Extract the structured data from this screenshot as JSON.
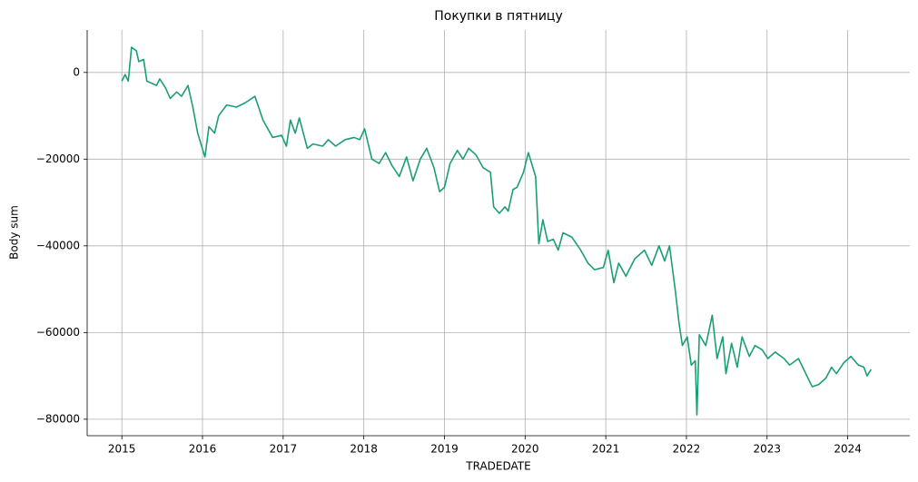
{
  "chart_data": {
    "type": "line",
    "title": "Покупки в пятницу",
    "x_label": "TRADEDATE",
    "y_label": "Body sum",
    "x": [
      2015.0,
      2015.04,
      2015.08,
      2015.12,
      2015.18,
      2015.21,
      2015.27,
      2015.31,
      2015.43,
      2015.47,
      2015.54,
      2015.6,
      2015.68,
      2015.74,
      2015.82,
      2015.88,
      2015.94,
      2016.03,
      2016.08,
      2016.15,
      2016.2,
      2016.3,
      2016.42,
      2016.53,
      2016.65,
      2016.75,
      2016.87,
      2016.98,
      2017.04,
      2017.09,
      2017.15,
      2017.2,
      2017.3,
      2017.37,
      2017.49,
      2017.56,
      2017.65,
      2017.77,
      2017.88,
      2017.95,
      2018.01,
      2018.1,
      2018.19,
      2018.27,
      2018.35,
      2018.44,
      2018.53,
      2018.61,
      2018.7,
      2018.78,
      2018.87,
      2018.94,
      2019.0,
      2019.07,
      2019.16,
      2019.23,
      2019.3,
      2019.39,
      2019.48,
      2019.57,
      2019.61,
      2019.68,
      2019.75,
      2019.79,
      2019.85,
      2019.9,
      2019.98,
      2020.04,
      2020.13,
      2020.17,
      2020.22,
      2020.28,
      2020.35,
      2020.41,
      2020.47,
      2020.58,
      2020.69,
      2020.78,
      2020.86,
      2020.97,
      2021.03,
      2021.1,
      2021.16,
      2021.25,
      2021.36,
      2021.48,
      2021.57,
      2021.66,
      2021.73,
      2021.79,
      2021.86,
      2021.91,
      2021.95,
      2022.01,
      2022.06,
      2022.11,
      2022.13,
      2022.16,
      2022.24,
      2022.32,
      2022.38,
      2022.45,
      2022.49,
      2022.56,
      2022.63,
      2022.69,
      2022.78,
      2022.85,
      2022.94,
      2023.01,
      2023.1,
      2023.21,
      2023.28,
      2023.39,
      2023.48,
      2023.56,
      2023.64,
      2023.73,
      2023.8,
      2023.86,
      2023.95,
      2024.04,
      2024.13,
      2024.2,
      2024.24,
      2024.29
    ],
    "series": [
      {
        "name": "Body sum",
        "color": "#1b9e77",
        "values": [
          -2000,
          -500,
          -2000,
          5800,
          5000,
          2500,
          3000,
          -2000,
          -3000,
          -1500,
          -3500,
          -6000,
          -4500,
          -5500,
          -3000,
          -8000,
          -14000,
          -19500,
          -12500,
          -14000,
          -10000,
          -7500,
          -8000,
          -7000,
          -5500,
          -11000,
          -15000,
          -14500,
          -17000,
          -11000,
          -14000,
          -10500,
          -17500,
          -16500,
          -17000,
          -15500,
          -17000,
          -15500,
          -15000,
          -15500,
          -13000,
          -20000,
          -21000,
          -18500,
          -21500,
          -24000,
          -19500,
          -25000,
          -20000,
          -17500,
          -22000,
          -27500,
          -26500,
          -21000,
          -18000,
          -20000,
          -17500,
          -19000,
          -22000,
          -23000,
          -31000,
          -32500,
          -31000,
          -32000,
          -27000,
          -26500,
          -23000,
          -18500,
          -24000,
          -39500,
          -34000,
          -39000,
          -38500,
          -41000,
          -37000,
          -38000,
          -41000,
          -44000,
          -45500,
          -45000,
          -41000,
          -48500,
          -44000,
          -47000,
          -43000,
          -41000,
          -44500,
          -40000,
          -43500,
          -40000,
          -50000,
          -58000,
          -63000,
          -61000,
          -67500,
          -66500,
          -79000,
          -60500,
          -63000,
          -56000,
          -66000,
          -61000,
          -69500,
          -62500,
          -68000,
          -61000,
          -65500,
          -63000,
          -64000,
          -66000,
          -64500,
          -66000,
          -67500,
          -66000,
          -69500,
          -72500,
          -72000,
          -70500,
          -68000,
          -69500,
          -67000,
          -65500,
          -67500,
          -68000,
          -70000,
          -68500
        ]
      }
    ],
    "xlim": [
      2014.57,
      2024.77
    ],
    "xticks": [
      2015,
      2016,
      2017,
      2018,
      2019,
      2020,
      2021,
      2022,
      2023,
      2024
    ],
    "ylim": [
      -83800,
      9800
    ],
    "yticks": [
      {
        "value": -80000,
        "label": "−80000"
      },
      {
        "value": -60000,
        "label": "−60000"
      },
      {
        "value": -40000,
        "label": "−40000"
      },
      {
        "value": -20000,
        "label": "−20000"
      },
      0
    ],
    "grid": true
  }
}
